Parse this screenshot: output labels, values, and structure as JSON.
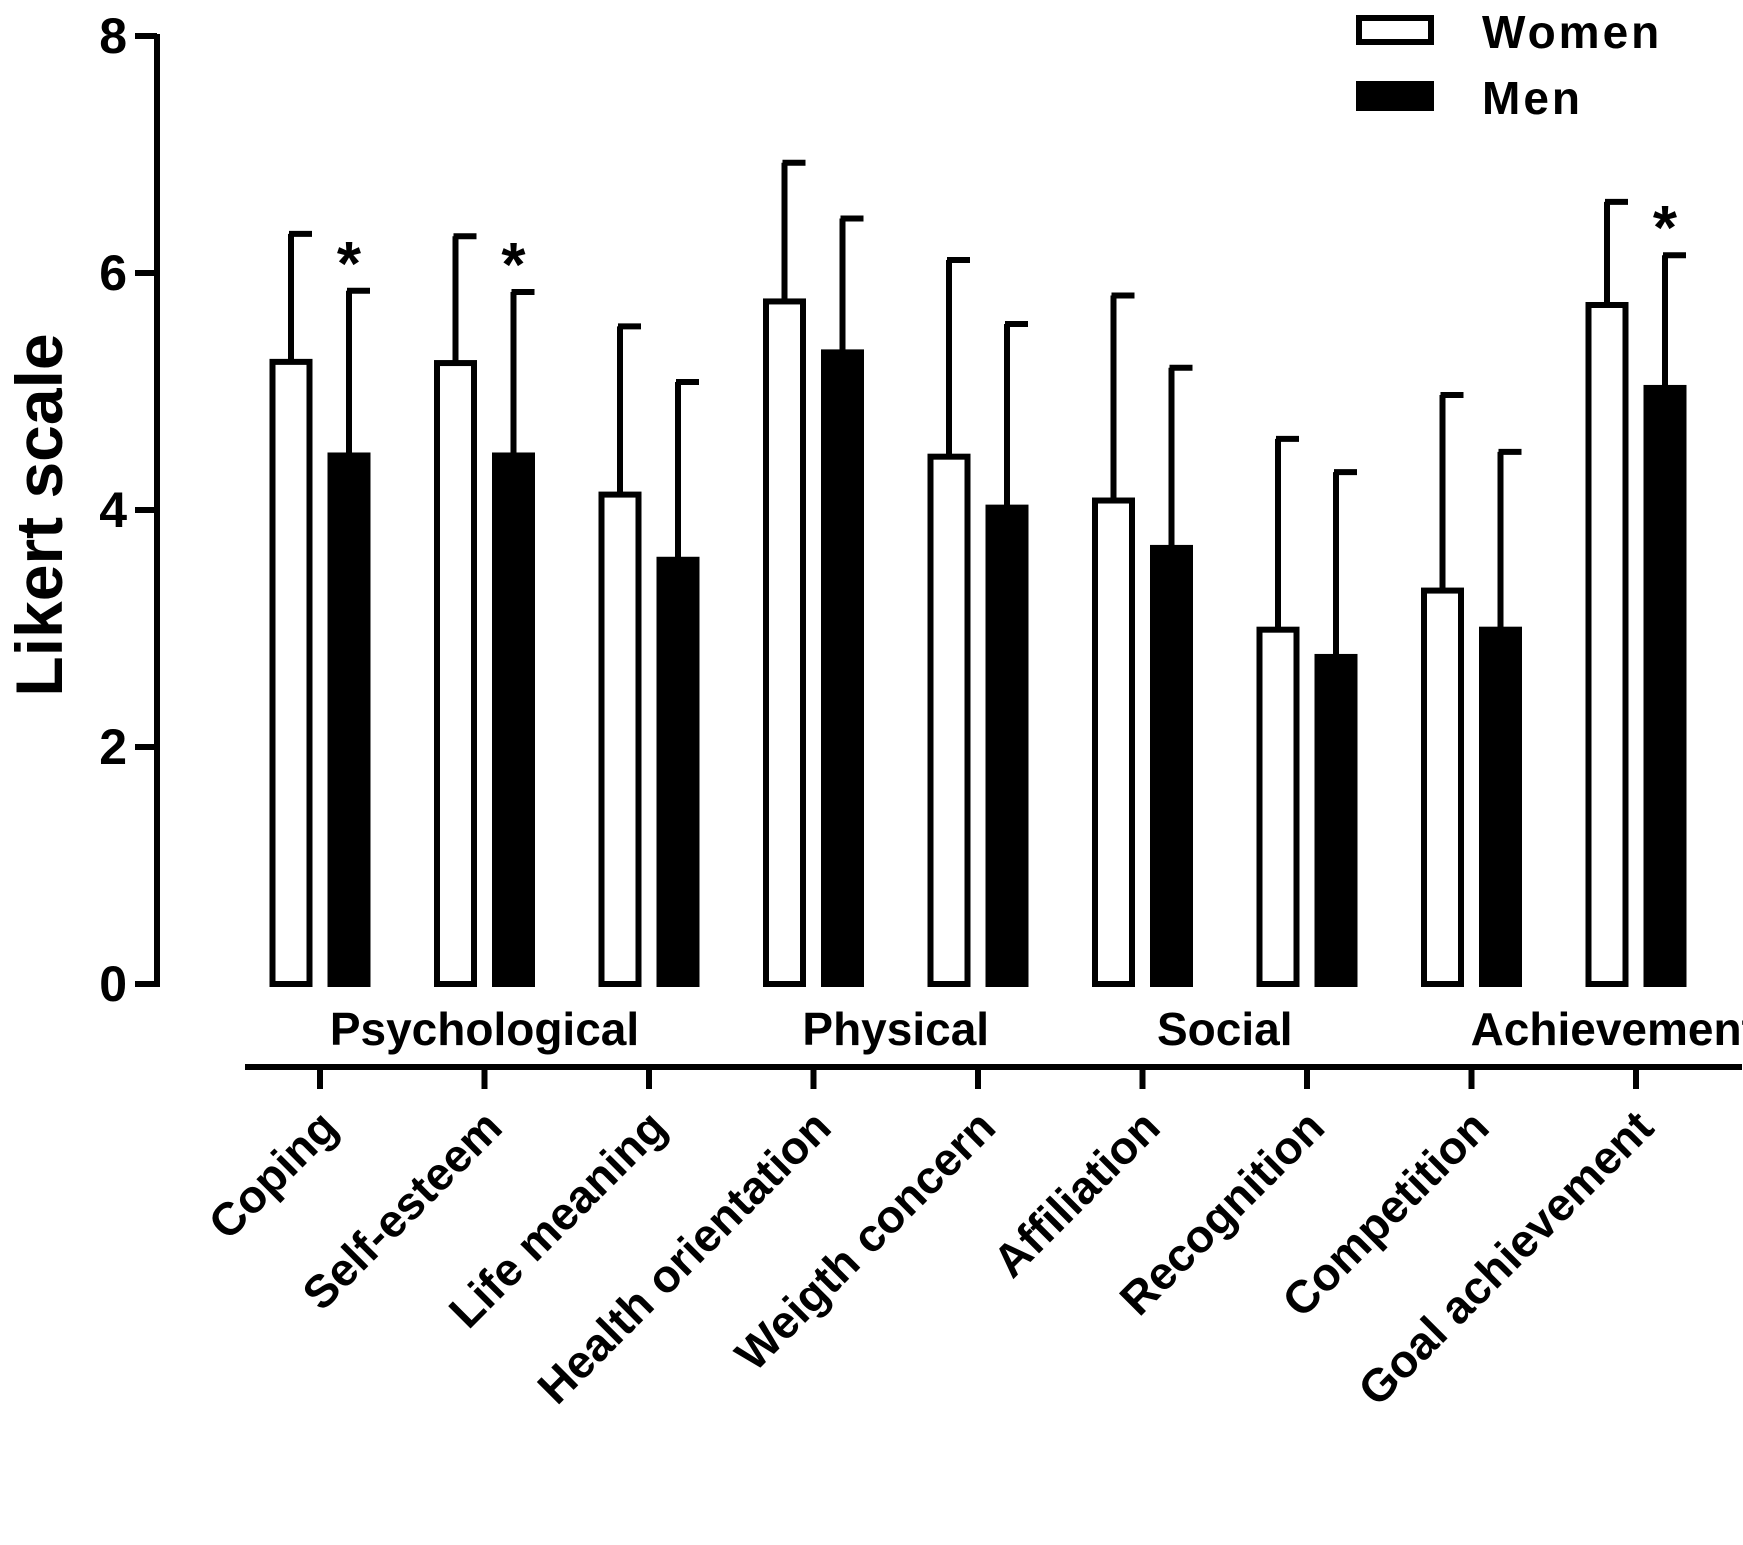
{
  "chart_data": {
    "type": "bar",
    "title": "",
    "xlabel": "",
    "ylabel": "Likert scale",
    "ylim": [
      0,
      8
    ],
    "yticks": [
      0,
      2,
      4,
      6,
      8
    ],
    "categories": [
      "Coping",
      "Self-esteem",
      "Life meaning",
      "Health orientation",
      "Weigth concern",
      "Affiliation",
      "Recognition",
      "Competition",
      "Goal achievement"
    ],
    "series": [
      {
        "name": "Women",
        "values": [
          5.25,
          5.24,
          4.13,
          5.76,
          4.45,
          4.08,
          2.99,
          3.32,
          5.73
        ],
        "sd": [
          1.08,
          1.07,
          1.42,
          1.17,
          1.66,
          1.73,
          1.61,
          1.65,
          0.87
        ]
      },
      {
        "name": "Men",
        "values": [
          4.46,
          4.46,
          3.58,
          5.33,
          4.02,
          3.68,
          2.76,
          2.99,
          5.03
        ],
        "sd": [
          1.39,
          1.38,
          1.5,
          1.13,
          1.55,
          1.52,
          1.56,
          1.5,
          1.12
        ]
      }
    ],
    "significance": [
      {
        "category": "Coping",
        "series": "Men",
        "mark": "*"
      },
      {
        "category": "Self-esteem",
        "series": "Men",
        "mark": "*"
      },
      {
        "category": "Goal achievement",
        "series": "Men",
        "mark": "*"
      }
    ],
    "groups": [
      {
        "label": "Psychological",
        "categories": [
          "Coping",
          "Self-esteem",
          "Life meaning"
        ]
      },
      {
        "label": "Physical",
        "categories": [
          "Health orientation",
          "Weigth concern"
        ]
      },
      {
        "label": "Social",
        "categories": [
          "Affiliation",
          "Recognition"
        ]
      },
      {
        "label": "Achievement",
        "categories": [
          "Competition",
          "Goal achievement"
        ]
      }
    ],
    "legend": {
      "position": "top-right"
    },
    "grid": false
  },
  "colors": {
    "women_fill": "#ffffff",
    "men_fill": "#000000",
    "stroke": "#000000"
  }
}
